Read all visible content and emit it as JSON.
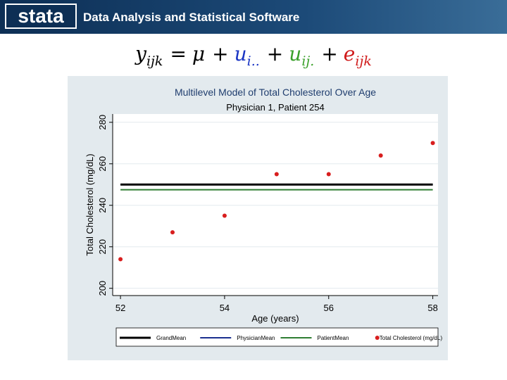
{
  "header": {
    "logo": "stata",
    "tagline": "Data Analysis and Statistical Software"
  },
  "equation": [
    {
      "text": "y",
      "sub": "ijk"
    },
    {
      "text": "="
    },
    {
      "text": "μ"
    },
    {
      "text": "+"
    },
    {
      "text": "u",
      "sub": "i..",
      "color": "#1a35c4"
    },
    {
      "text": "+"
    },
    {
      "text": "u",
      "sub": "ij.",
      "color": "#3aa02a"
    },
    {
      "text": "+"
    },
    {
      "text": "e",
      "sub": "ijk",
      "color": "#d01a1a"
    }
  ],
  "chart_data": {
    "type": "line",
    "title": "Multilevel Model of Total Cholesterol Over Age",
    "subtitle": "Physician 1, Patient 254",
    "xlabel": "Age (years)",
    "ylabel": "Total Cholesterol (mg/dL)",
    "x": [
      52,
      53,
      54,
      55,
      56,
      57,
      58
    ],
    "series": [
      {
        "name": "GrandMean",
        "color": "#000000",
        "style": "line",
        "values": [
          250,
          250,
          250,
          250,
          250,
          250,
          250
        ]
      },
      {
        "name": "PhysicianMean",
        "color": "#1a2f8f",
        "style": "line",
        "values": [
          250,
          250,
          250,
          250,
          250,
          250,
          250
        ]
      },
      {
        "name": "PatientMean",
        "color": "#2e7d32",
        "style": "line",
        "values": [
          247.5,
          247.5,
          247.5,
          247.5,
          247.5,
          247.5,
          247.5
        ]
      },
      {
        "name": "Total Cholesterol (mg/dL)",
        "color": "#d81e1e",
        "style": "markers",
        "values": [
          214,
          227,
          235,
          255,
          255,
          264,
          270
        ]
      }
    ],
    "xlim": [
      51.85,
      58.1
    ],
    "ylim": [
      196.5,
      284
    ],
    "xticks": [
      52,
      54,
      56,
      58
    ],
    "yticks": [
      200,
      220,
      240,
      260,
      280
    ],
    "grid": true,
    "legend": "bottom"
  }
}
